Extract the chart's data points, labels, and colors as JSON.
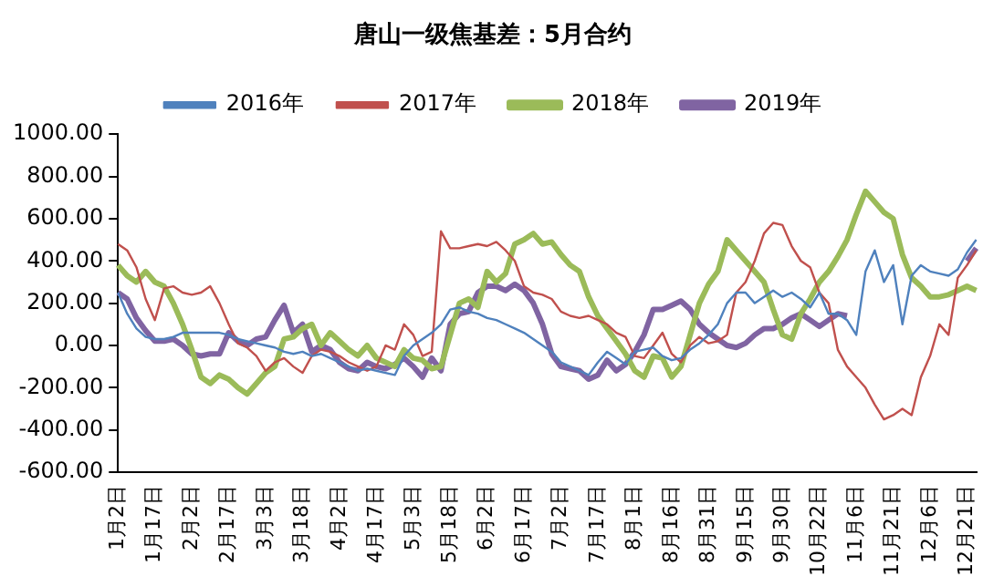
{
  "chart_data": {
    "type": "line",
    "title": "唐山一级焦基差：5月合约",
    "categories": [
      "1月2日",
      null,
      null,
      null,
      "1月17日",
      null,
      null,
      null,
      "2月2日",
      null,
      null,
      null,
      "2月17日",
      null,
      null,
      null,
      "3月3日",
      null,
      null,
      null,
      "3月18日",
      null,
      null,
      null,
      "4月2日",
      null,
      null,
      null,
      "4月17日",
      null,
      null,
      null,
      "5月3日",
      null,
      null,
      null,
      "5月18日",
      null,
      null,
      null,
      "6月2日",
      null,
      null,
      null,
      "6月17日",
      null,
      null,
      null,
      "7月2日",
      null,
      null,
      null,
      "7月17日",
      null,
      null,
      null,
      "8月1日",
      null,
      null,
      null,
      "8月16日",
      null,
      null,
      null,
      "8月31日",
      null,
      null,
      null,
      "9月15日",
      null,
      null,
      null,
      "9月30日",
      null,
      null,
      null,
      "10月22日",
      null,
      null,
      null,
      "11月6日",
      null,
      null,
      null,
      "11月21日",
      null,
      null,
      null,
      "12月6日",
      null,
      null,
      null,
      "12月21日",
      null
    ],
    "series": [
      {
        "name": "2016年",
        "color": "#4f81bd",
        "values": [
          250,
          150,
          80,
          40,
          30,
          30,
          40,
          60,
          60,
          60,
          60,
          60,
          50,
          30,
          20,
          10,
          0,
          -10,
          -30,
          -40,
          -30,
          -50,
          -40,
          -60,
          -80,
          -100,
          -120,
          -110,
          -120,
          -130,
          -140,
          -50,
          0,
          30,
          60,
          100,
          170,
          180,
          160,
          150,
          130,
          120,
          100,
          80,
          60,
          30,
          0,
          -30,
          -80,
          -100,
          -120,
          -140,
          -80,
          -30,
          -60,
          -90,
          -30,
          -20,
          -10,
          -50,
          -70,
          -60,
          -20,
          10,
          50,
          100,
          200,
          250,
          250,
          200,
          230,
          260,
          230,
          250,
          220,
          180,
          250,
          150,
          150,
          120,
          50,
          350,
          450,
          300,
          380,
          100,
          330,
          380,
          350,
          340,
          330,
          360,
          440,
          500
        ]
      },
      {
        "name": "2017年",
        "color": "#c0504d",
        "values": [
          480,
          450,
          370,
          220,
          120,
          270,
          280,
          250,
          240,
          250,
          280,
          200,
          100,
          10,
          -10,
          -50,
          -120,
          -80,
          -60,
          -100,
          -130,
          -50,
          -20,
          -30,
          -50,
          -80,
          -100,
          -120,
          -100,
          0,
          -20,
          100,
          50,
          -50,
          -30,
          540,
          460,
          460,
          470,
          480,
          470,
          490,
          450,
          400,
          280,
          250,
          240,
          220,
          160,
          140,
          130,
          140,
          120,
          100,
          60,
          40,
          -50,
          -60,
          0,
          60,
          -40,
          -80,
          0,
          40,
          10,
          20,
          50,
          250,
          300,
          400,
          530,
          580,
          570,
          470,
          400,
          370,
          250,
          200,
          -20,
          -100,
          -150,
          -200,
          -280,
          -350,
          -330,
          -300,
          -330,
          -150,
          -50,
          100,
          50,
          320,
          380,
          450
        ]
      },
      {
        "name": "2018年",
        "color": "#9bbb59",
        "values": [
          380,
          330,
          300,
          350,
          300,
          280,
          200,
          100,
          -20,
          -150,
          -180,
          -140,
          -160,
          -200,
          -230,
          -180,
          -130,
          -100,
          30,
          40,
          80,
          100,
          0,
          60,
          20,
          -20,
          -50,
          0,
          -60,
          -80,
          -100,
          -20,
          -60,
          -70,
          -110,
          -100,
          50,
          200,
          220,
          180,
          350,
          300,
          340,
          480,
          500,
          530,
          480,
          490,
          430,
          380,
          350,
          230,
          140,
          80,
          20,
          -40,
          -120,
          -150,
          -50,
          -60,
          -150,
          -100,
          50,
          200,
          290,
          350,
          500,
          450,
          400,
          350,
          300,
          170,
          50,
          30,
          150,
          220,
          300,
          350,
          420,
          500,
          620,
          730,
          680,
          630,
          600,
          430,
          320,
          280,
          230,
          230,
          240,
          260,
          280,
          260
        ]
      },
      {
        "name": "2019年",
        "color": "#8064a2",
        "values": [
          250,
          220,
          130,
          70,
          20,
          20,
          30,
          0,
          -40,
          -50,
          -40,
          -40,
          60,
          20,
          0,
          30,
          40,
          120,
          190,
          60,
          100,
          -30,
          0,
          -20,
          -80,
          -110,
          -120,
          -80,
          -100,
          -110,
          -90,
          -60,
          -100,
          -150,
          -60,
          -120,
          100,
          150,
          160,
          250,
          280,
          280,
          260,
          290,
          260,
          200,
          100,
          -40,
          -100,
          -110,
          -120,
          -160,
          -140,
          -70,
          -120,
          -90,
          -30,
          50,
          170,
          170,
          190,
          210,
          170,
          100,
          60,
          30,
          0,
          -10,
          10,
          50,
          80,
          80,
          100,
          130,
          150,
          120,
          90,
          120,
          150,
          140,
          null,
          null,
          null,
          null,
          null,
          null,
          null,
          null,
          null,
          null,
          null,
          null,
          400,
          460
        ]
      }
    ],
    "ylim": [
      -600,
      1000
    ],
    "yticks": [
      {
        "value": -600,
        "label": "-600.00"
      },
      {
        "value": -400,
        "label": "-400.00"
      },
      {
        "value": -200,
        "label": "-200.00"
      },
      {
        "value": 0,
        "label": "0.00"
      },
      {
        "value": 200,
        "label": "200.00"
      },
      {
        "value": 400,
        "label": "400.00"
      },
      {
        "value": 600,
        "label": "600.00"
      },
      {
        "value": 800,
        "label": "800.00"
      },
      {
        "value": 1000,
        "label": "1000.00"
      }
    ],
    "grid": false,
    "legend": "top",
    "marker": "none",
    "line_style": "solid"
  }
}
